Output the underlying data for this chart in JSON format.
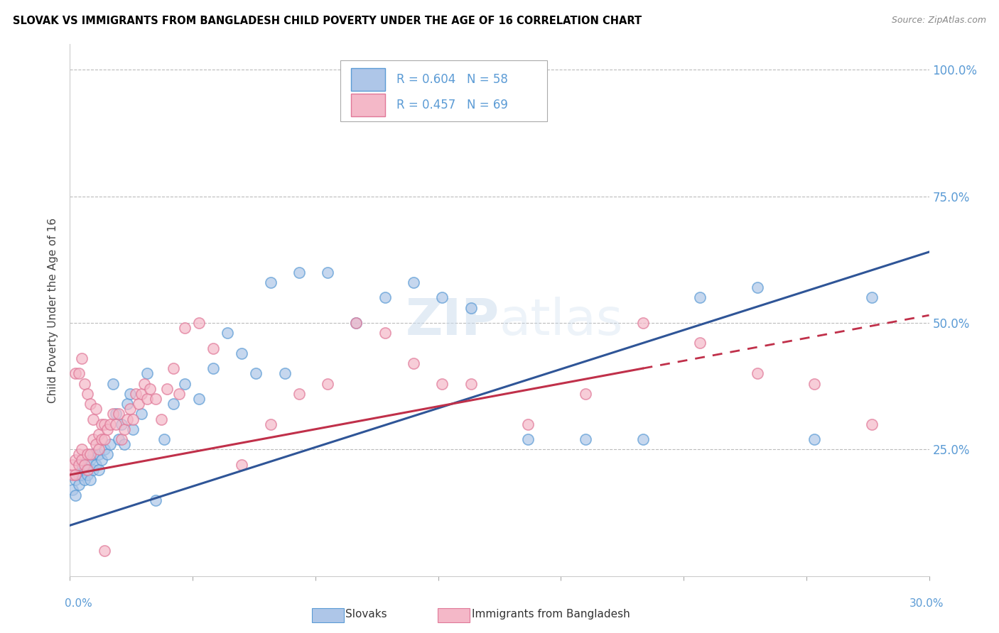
{
  "title": "SLOVAK VS IMMIGRANTS FROM BANGLADESH CHILD POVERTY UNDER THE AGE OF 16 CORRELATION CHART",
  "source": "Source: ZipAtlas.com",
  "ylabel": "Child Poverty Under the Age of 16",
  "xlim": [
    0.0,
    0.3
  ],
  "ylim": [
    0.0,
    1.05
  ],
  "ytick_values": [
    0.0,
    0.25,
    0.5,
    0.75,
    1.0
  ],
  "right_ytick_values": [
    0.25,
    0.5,
    0.75,
    1.0
  ],
  "right_ytick_labels": [
    "25.0%",
    "50.0%",
    "75.0%",
    "100.0%"
  ],
  "blue_fill": "#AEC6E8",
  "blue_edge": "#5B9BD5",
  "pink_fill": "#F4B8C8",
  "pink_edge": "#E07898",
  "blue_line_color": "#2F5597",
  "pink_line_color": "#C0304A",
  "right_axis_color": "#5B9BD5",
  "legend_r_blue": "R = 0.604",
  "legend_n_blue": "N = 58",
  "legend_r_pink": "R = 0.457",
  "legend_n_pink": "N = 69",
  "series1_label": "Slovaks",
  "series2_label": "Immigrants from Bangladesh",
  "watermark": "ZIPatlas",
  "background_color": "#FFFFFF",
  "grid_color": "#BBBBBB",
  "title_color": "#000000",
  "blue_intercept": 0.1,
  "blue_slope": 1.8,
  "pink_intercept": 0.2,
  "pink_slope": 1.05
}
